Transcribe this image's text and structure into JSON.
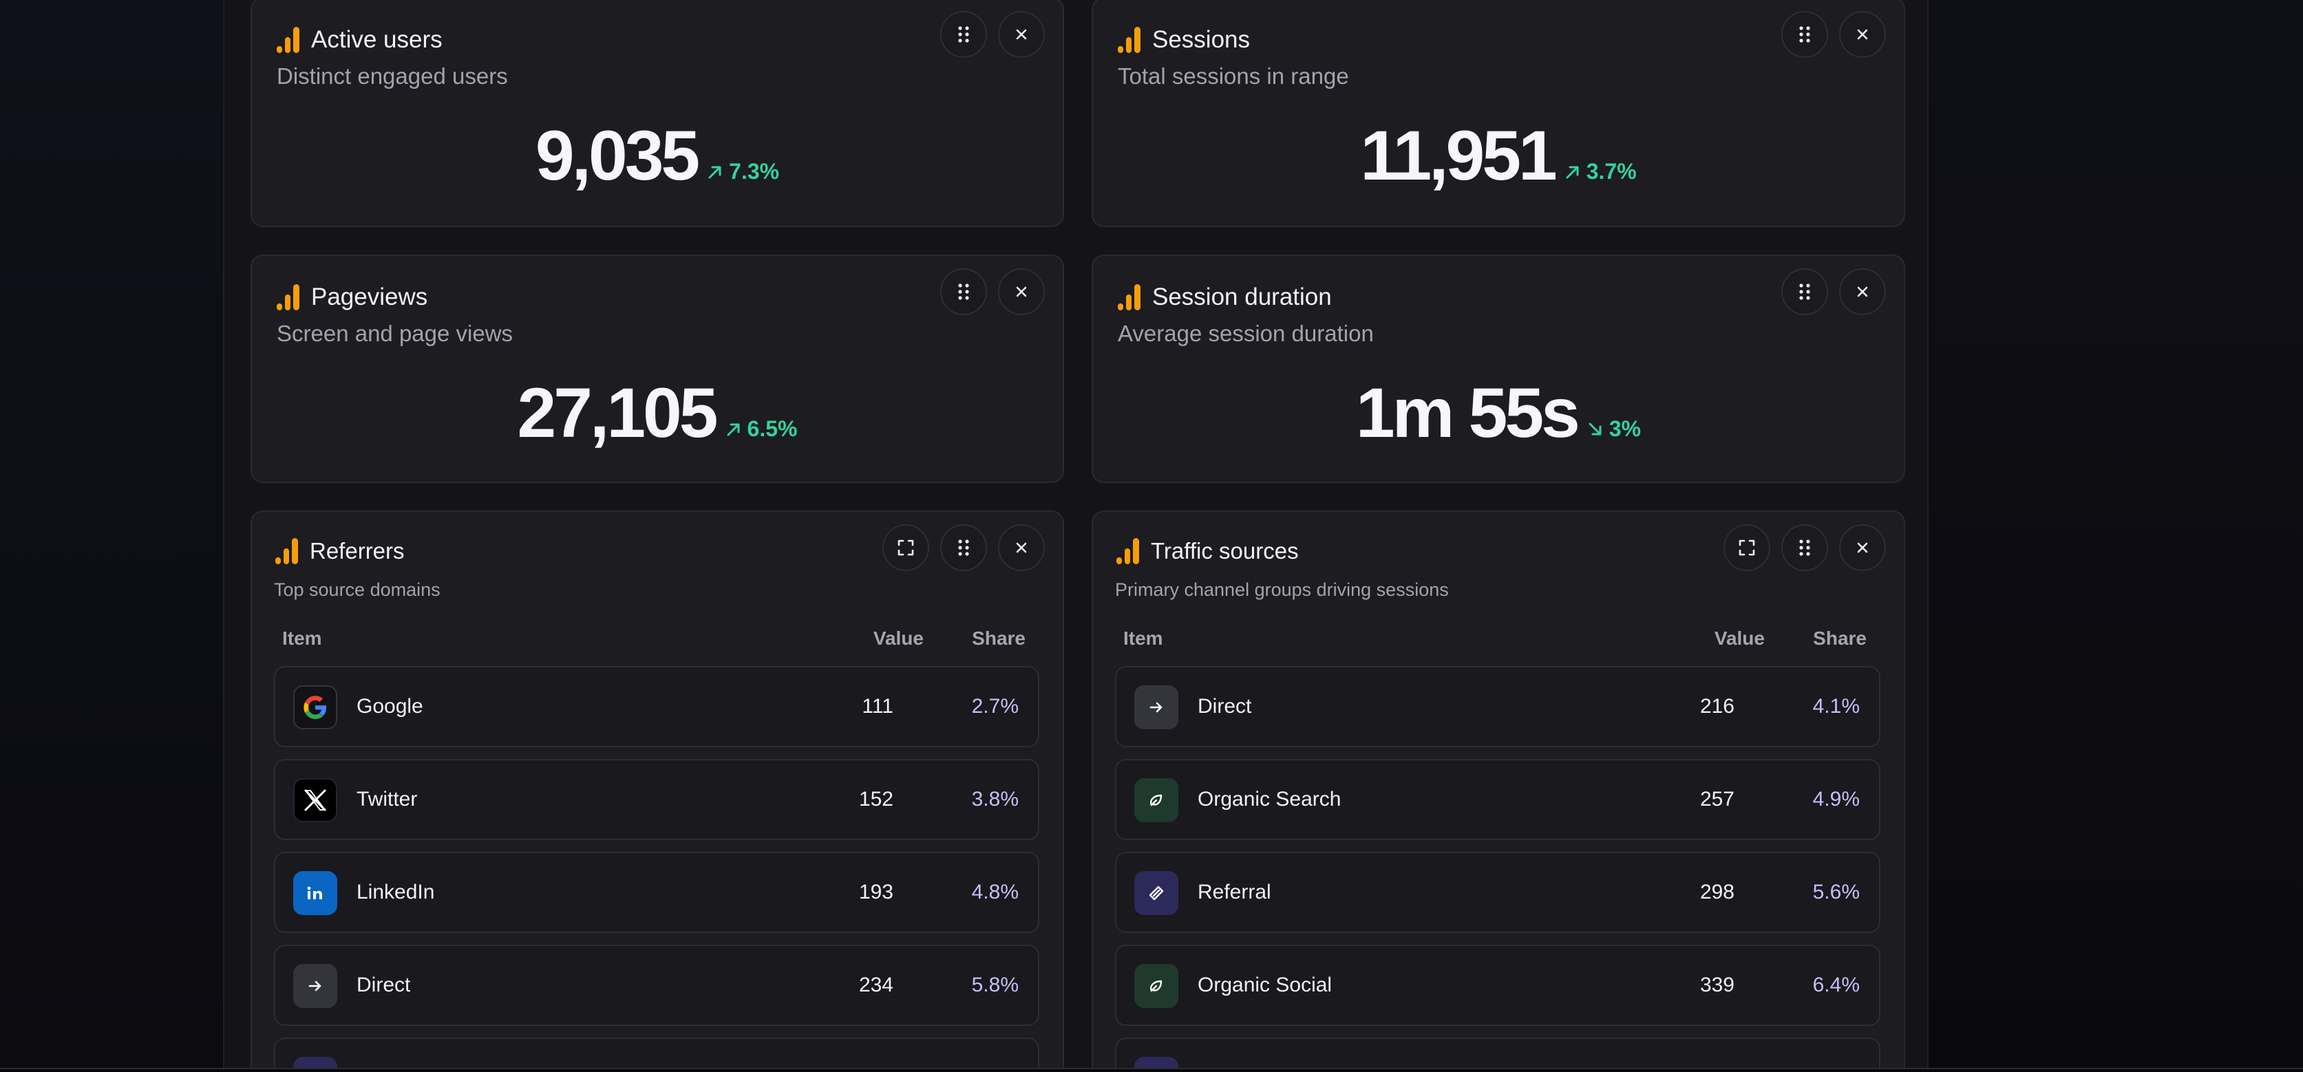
{
  "metrics": [
    {
      "title": "Active users",
      "subtitle": "Distinct engaged users",
      "value": "9,035",
      "delta": "7.3%",
      "direction": "up"
    },
    {
      "title": "Sessions",
      "subtitle": "Total sessions in range",
      "value": "11,951",
      "delta": "3.7%",
      "direction": "up"
    },
    {
      "title": "Pageviews",
      "subtitle": "Screen and page views",
      "value": "27,105",
      "delta": "6.5%",
      "direction": "up"
    },
    {
      "title": "Session duration",
      "subtitle": "Average session duration",
      "value": "1m 55s",
      "delta": "3%",
      "direction": "down"
    }
  ],
  "referrers": {
    "title": "Referrers",
    "subtitle": "Top source domains",
    "columns": {
      "item": "Item",
      "value": "Value",
      "share": "Share"
    },
    "rows": [
      {
        "name": "Google",
        "value": "111",
        "share": "2.7%",
        "icon": "google-icon"
      },
      {
        "name": "Twitter",
        "value": "152",
        "share": "3.8%",
        "icon": "x-twitter-icon"
      },
      {
        "name": "LinkedIn",
        "value": "193",
        "share": "4.8%",
        "icon": "linkedin-icon"
      },
      {
        "name": "Direct",
        "value": "234",
        "share": "5.8%",
        "icon": "arrow-right-icon"
      }
    ]
  },
  "traffic": {
    "title": "Traffic sources",
    "subtitle": "Primary channel groups driving sessions",
    "columns": {
      "item": "Item",
      "value": "Value",
      "share": "Share"
    },
    "rows": [
      {
        "name": "Direct",
        "value": "216",
        "share": "4.1%",
        "icon": "arrow-right-icon"
      },
      {
        "name": "Organic Search",
        "value": "257",
        "share": "4.9%",
        "icon": "leaf-icon"
      },
      {
        "name": "Referral",
        "value": "298",
        "share": "5.6%",
        "icon": "link-icon"
      },
      {
        "name": "Organic Social",
        "value": "339",
        "share": "6.4%",
        "icon": "leaf-icon"
      }
    ]
  },
  "colors": {
    "accent_orange": "#f59e0b",
    "positive_green": "#34d399",
    "share_purple": "#c4c0f6",
    "linkedin_blue": "#0a66c2"
  },
  "icons": {
    "metric": "analytics-bars-icon",
    "drag": "drag-handle-icon",
    "close": "close-icon",
    "expand": "expand-icon"
  }
}
